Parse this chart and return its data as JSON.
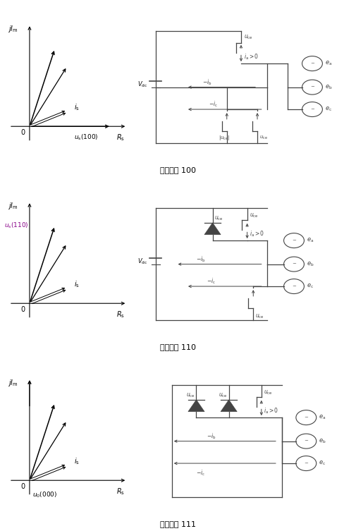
{
  "panel_titles": [
    "开关状态 100",
    "开关状态 110",
    "开关状态 111"
  ],
  "cc": "#444444",
  "lw": 0.9,
  "fig_w": 5.05,
  "fig_h": 7.53,
  "dpi": 100
}
